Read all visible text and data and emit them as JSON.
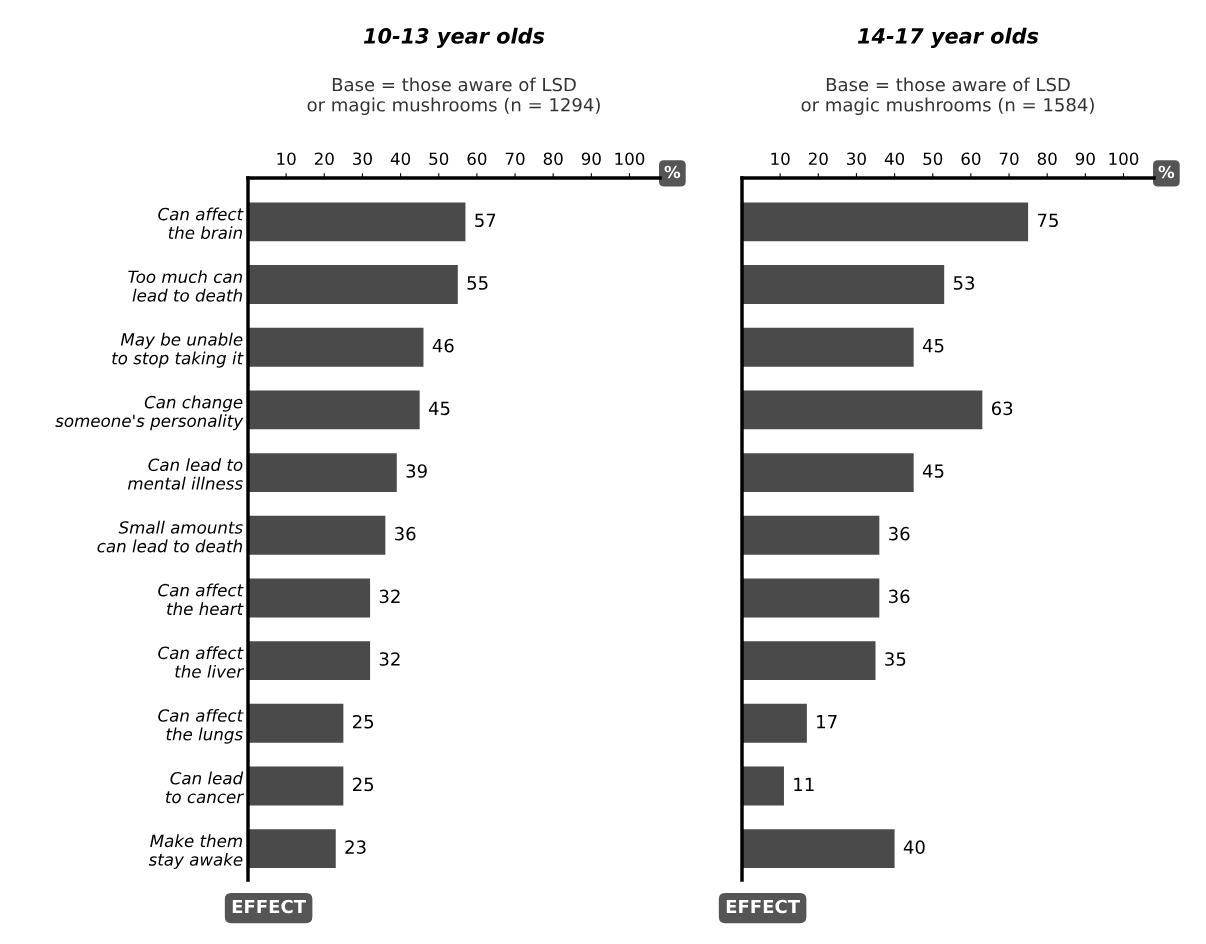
{
  "chart_data": [
    {
      "type": "bar",
      "orientation": "horizontal",
      "title": "10-13 year olds",
      "subtitle": "Base = those aware of LSD\nor magic mushrooms (n = 1294)",
      "xlabel": "%",
      "annotations": [
        "EFFECT"
      ],
      "categories": [
        "Can affect\nthe brain",
        "Too much can\nlead to death",
        "May be unable\nto stop taking it",
        "Can change\nsomeone's personality",
        "Can lead to\nmental illness",
        "Small amounts\ncan lead to death",
        "Can affect\nthe heart",
        "Can affect\nthe liver",
        "Can affect\nthe lungs",
        "Can lead\nto cancer",
        "Make them\nstay awake"
      ],
      "values": [
        57,
        55,
        46,
        45,
        39,
        36,
        32,
        32,
        25,
        25,
        23
      ],
      "color": "#4a4a4a",
      "xlim": [
        0,
        108
      ],
      "xticks": [
        10,
        20,
        30,
        40,
        50,
        60,
        70,
        80,
        90,
        100
      ],
      "data_labels": true,
      "grid": false
    },
    {
      "type": "bar",
      "orientation": "horizontal",
      "title": "14-17 year olds",
      "subtitle": "Base = those aware of LSD\nor magic mushrooms (n = 1584)",
      "xlabel": "%",
      "annotations": [
        "EFFECT"
      ],
      "categories": [
        null,
        null,
        null,
        null,
        null,
        null,
        null,
        null,
        null,
        null,
        null
      ],
      "values": [
        75,
        53,
        45,
        63,
        45,
        36,
        36,
        35,
        17,
        11,
        40
      ],
      "color": "#4a4a4a",
      "xlim": [
        0,
        108
      ],
      "xticks": [
        10,
        20,
        30,
        40,
        50,
        60,
        70,
        80,
        90,
        100
      ],
      "data_labels": true,
      "grid": false,
      "tick_labels": "x"
    }
  ]
}
